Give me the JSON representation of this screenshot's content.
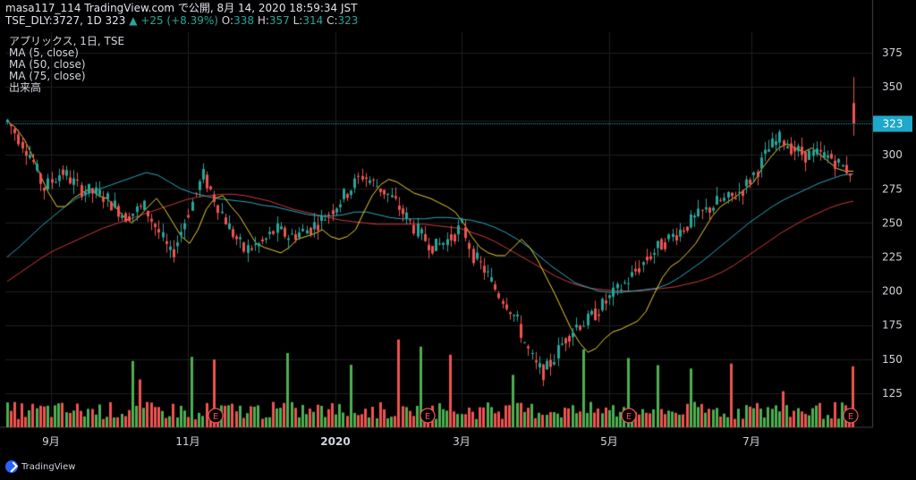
{
  "header": {
    "line1": "masa117_114 TradingView.com で公開, 8月 14, 2020 18:59:34 JST",
    "symbol": "TSE_DLY:3727, 1D 323",
    "change": "▲ +25 (+8.39%)",
    "o_label": "O:",
    "o_value": "338",
    "h_label": "H:",
    "h_value": "357",
    "l_label": "L:",
    "l_value": "314",
    "c_label": "C:",
    "c_value": "323"
  },
  "legend": {
    "title": "アプリックス, 1日, TSE",
    "ma5": "MA (5, close)",
    "ma50": "MA (50, close)",
    "ma75": "MA (75, close)",
    "volume": "出来高"
  },
  "brand": {
    "name": "TradingView"
  },
  "colors": {
    "up": "#26a69a",
    "down": "#ef5350",
    "vol_up": "#4caf50",
    "vol_down": "#ef5350",
    "ma5": "#f0d030",
    "ma50": "#2aa8c0",
    "ma75": "#d03a3a",
    "grid": "#1f1f1f",
    "price_label_bg": "#1ea8c9"
  },
  "chart_data": {
    "type": "candlestick",
    "title": "アプリックス, 1日, TSE",
    "y_axis": {
      "ticks": [
        125,
        150,
        175,
        200,
        225,
        250,
        275,
        300,
        325,
        350,
        375
      ],
      "range": [
        100,
        390
      ]
    },
    "x_axis": {
      "ticks": [
        "9月",
        "11月",
        "2020",
        "3月",
        "5月",
        "7月"
      ]
    },
    "last_price": {
      "value": 323,
      "label": "323"
    },
    "earnings_markers": [
      "E",
      "E",
      "E",
      "E"
    ],
    "series": [
      {
        "name": "MA (5, close)",
        "values": [
          325,
          320,
          312,
          300,
          285,
          272,
          262,
          262,
          268,
          272,
          275,
          270,
          268,
          262,
          255,
          250,
          255,
          262,
          268,
          260,
          250,
          240,
          235,
          245,
          260,
          268,
          270,
          262,
          255,
          245,
          235,
          232,
          230,
          228,
          232,
          238,
          240,
          242,
          245,
          240,
          238,
          240,
          245,
          258,
          270,
          278,
          282,
          280,
          276,
          272,
          270,
          268,
          265,
          262,
          258,
          250,
          240,
          232,
          228,
          226,
          226,
          232,
          238,
          232,
          222,
          210,
          198,
          185,
          172,
          162,
          155,
          158,
          165,
          170,
          172,
          175,
          178,
          185,
          198,
          210,
          218,
          222,
          228,
          235,
          245,
          255,
          262,
          266,
          270,
          275,
          280,
          290,
          298,
          305,
          308,
          305,
          302,
          305,
          300,
          295,
          290,
          288,
          288
        ]
      },
      {
        "name": "MA (50, close)",
        "values": [
          225,
          232,
          240,
          248,
          255,
          262,
          268,
          272,
          275,
          278,
          281,
          284,
          287,
          285,
          280,
          275,
          272,
          270,
          268,
          267,
          266,
          265,
          263,
          262,
          260,
          258,
          256,
          255,
          255,
          256,
          258,
          258,
          256,
          254,
          253,
          253,
          253,
          254,
          254,
          253,
          252,
          250,
          247,
          243,
          238,
          232,
          225,
          218,
          212,
          206,
          203,
          200,
          199,
          199,
          200,
          201,
          202,
          205,
          210,
          216,
          222,
          229,
          236,
          243,
          250,
          256,
          262,
          267,
          271,
          275,
          279,
          282,
          285,
          286
        ]
      },
      {
        "name": "MA (75, close)",
        "values": [
          207,
          213,
          219,
          225,
          230,
          234,
          238,
          242,
          246,
          249,
          252,
          255,
          258,
          261,
          264,
          267,
          269,
          270,
          271,
          271,
          270,
          268,
          266,
          263,
          260,
          258,
          256,
          254,
          252,
          251,
          250,
          249,
          249,
          249,
          249,
          249,
          248,
          247,
          246,
          243,
          240,
          236,
          231,
          226,
          221,
          216,
          211,
          207,
          204,
          202,
          201,
          200,
          200,
          200,
          201,
          202,
          203,
          205,
          207,
          210,
          214,
          219,
          225,
          231,
          237,
          243,
          248,
          253,
          257,
          261,
          264,
          266
        ]
      }
    ],
    "candles": {
      "count": 230
    }
  }
}
